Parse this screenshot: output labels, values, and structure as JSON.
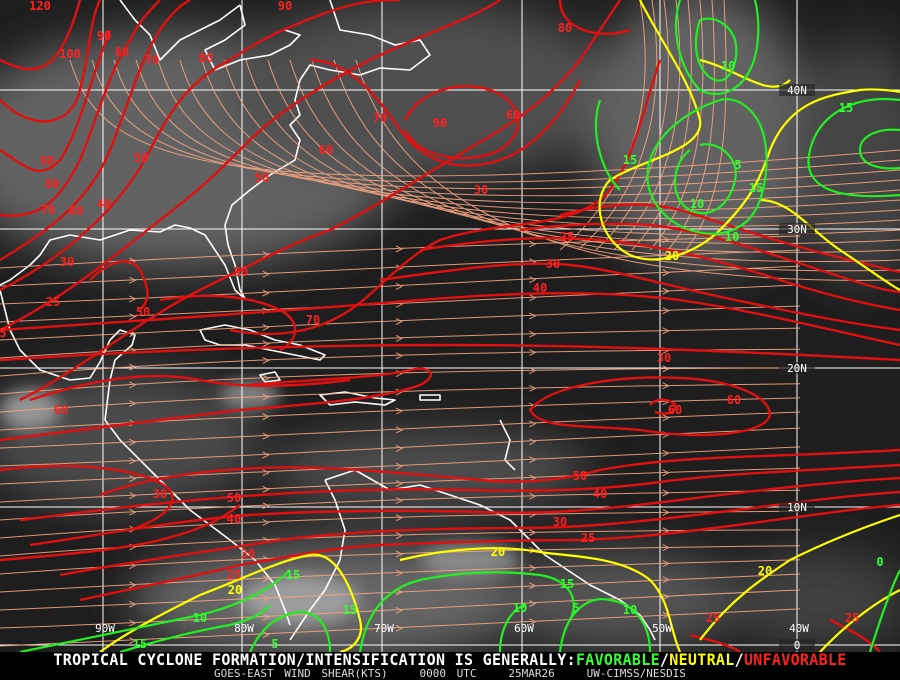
{
  "footer": {
    "headline_prefix": "TROPICAL CYCLONE FORMATION/INTENSIFICATION IS GENERALLY:",
    "favorable": "FAVORABLE",
    "slash1": "/",
    "neutral": "NEUTRAL",
    "slash2": "/",
    "unfavorable": "UNFAVORABLE",
    "product": "GOES-EAST WIND SHEAR(KTS)",
    "time": "0000 UTC",
    "date": "25MAR26",
    "source": "UW-CIMSS/NESDIS"
  },
  "colors": {
    "favorable": "#33ff33",
    "neutral": "#ffff00",
    "unfavorable": "#ff2020",
    "streamlines": "#f4a582",
    "grid": "#ffffff",
    "coastline": "#ffffff"
  },
  "latitude_labels": [
    "40N",
    "30N",
    "20N",
    "10N",
    "0"
  ],
  "longitude_labels": [
    "90W",
    "80W",
    "70W",
    "60W",
    "50W",
    "40W"
  ],
  "contour_labels": {
    "unfavorable": [
      "120",
      "100",
      "90",
      "80",
      "70",
      "80",
      "90",
      "70",
      "90",
      "60",
      "60",
      "50",
      "50",
      "90",
      "80",
      "70",
      "80",
      "40",
      "30",
      "25",
      "50",
      "30",
      "70",
      "50",
      "25",
      "30",
      "40",
      "30",
      "60",
      "60",
      "60",
      "50",
      "40",
      "30",
      "25",
      "30",
      "50",
      "40",
      "30",
      "25",
      "25",
      "25",
      "5",
      "80"
    ],
    "neutral": [
      "20",
      "20",
      "20",
      "20"
    ],
    "favorable": [
      "10",
      "15",
      "15",
      "5",
      "15",
      "10",
      "10",
      "15",
      "15",
      "10",
      "5",
      "10",
      "10",
      "15",
      "15",
      "5",
      "0"
    ]
  }
}
